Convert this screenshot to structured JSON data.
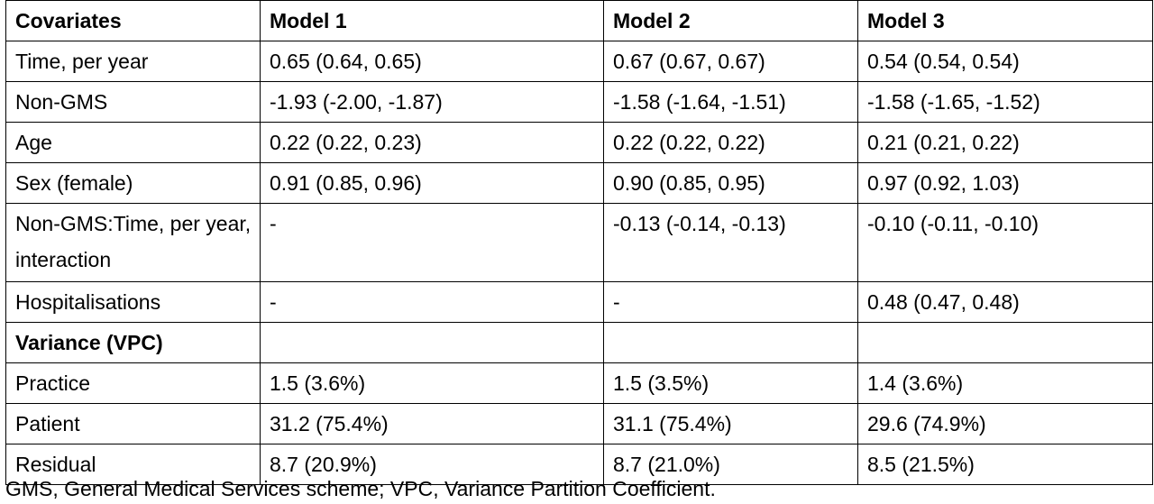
{
  "table": {
    "headers": [
      "Covariates",
      "Model 1",
      "Model 2",
      "Model 3"
    ],
    "rows": [
      {
        "label": "Time, per year",
        "m1": "0.65 (0.64, 0.65)",
        "m2": "0.67 (0.67, 0.67)",
        "m3": "0.54 (0.54, 0.54)"
      },
      {
        "label": "Non-GMS",
        "m1": "-1.93 (-2.00, -1.87)",
        "m2": "-1.58 (-1.64, -1.51)",
        "m3": "-1.58 (-1.65, -1.52)"
      },
      {
        "label": "Age",
        "m1": "0.22 (0.22, 0.23)",
        "m2": "0.22 (0.22, 0.22)",
        "m3": "0.21 (0.21, 0.22)"
      },
      {
        "label": "Sex (female)",
        "m1": "0.91 (0.85, 0.96)",
        "m2": "0.90 (0.85, 0.95)",
        "m3": "0.97 (0.92, 1.03)"
      },
      {
        "label": "Non-GMS:Time, per year, interaction",
        "m1": "-",
        "m2": "-0.13 (-0.14, -0.13)",
        "m3": "-0.10 (-0.11, -0.10)"
      },
      {
        "label": "Hospitalisations",
        "m1": "-",
        "m2": "-",
        "m3": "0.48 (0.47, 0.48)"
      },
      {
        "label": "Variance (VPC)",
        "m1": "",
        "m2": "",
        "m3": ""
      },
      {
        "label": "Practice",
        "m1": "1.5 (3.6%)",
        "m2": "1.5 (3.5%)",
        "m3": "1.4 (3.6%)"
      },
      {
        "label": "Patient",
        "m1": "31.2 (75.4%)",
        "m2": "31.1 (75.4%)",
        "m3": "29.6 (74.9%)"
      },
      {
        "label": "Residual",
        "m1": "8.7 (20.9%)",
        "m2": "8.7 (21.0%)",
        "m3": "8.5 (21.5%)"
      }
    ]
  },
  "footnote": "GMS, General Medical Services scheme; VPC, Variance Partition Coefficient."
}
